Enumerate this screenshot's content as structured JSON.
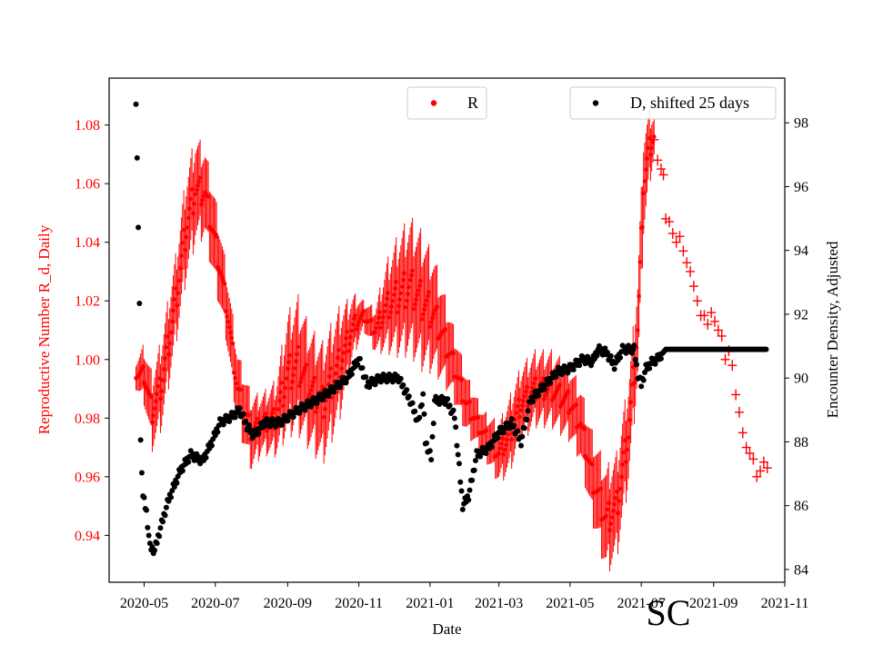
{
  "chart_data": {
    "type": "scatter",
    "x_axis": {
      "label": "Date",
      "start": "2020-04-01",
      "end": "2021-11-01",
      "tick_labels": [
        "2020-05",
        "2020-07",
        "2020-09",
        "2020-11",
        "2021-01",
        "2021-03",
        "2021-05",
        "2021-07",
        "2021-09",
        "2021-11"
      ],
      "tick_dates": [
        "2020-05-01",
        "2020-07-01",
        "2020-09-01",
        "2020-11-01",
        "2021-01-01",
        "2021-03-01",
        "2021-05-01",
        "2021-07-01",
        "2021-09-01",
        "2021-11-01"
      ]
    },
    "y_left": {
      "label": "Reproductive Number R_d, Daily",
      "ylim": [
        0.924,
        1.096
      ],
      "ticks": [
        0.94,
        0.96,
        0.98,
        1.0,
        1.02,
        1.04,
        1.06,
        1.08
      ],
      "tick_labels": [
        "0.94",
        "0.96",
        "0.98",
        "1.00",
        "1.02",
        "1.04",
        "1.06",
        "1.08"
      ],
      "color": "#ff0000"
    },
    "y_right": {
      "label": "Encounter Density, Adjusted",
      "ylim": [
        83.6,
        99.4
      ],
      "ticks": [
        84,
        86,
        88,
        90,
        92,
        94,
        96,
        98
      ],
      "tick_labels": [
        "84",
        "86",
        "88",
        "90",
        "92",
        "94",
        "96",
        "98"
      ],
      "color": "#000000"
    },
    "series": [
      {
        "name": "R",
        "axis": "left",
        "color": "#ff0000",
        "marker": "dot+error-band",
        "keyframes": [
          [
            "2020-04-24",
            0.995,
            0.004
          ],
          [
            "2020-05-01",
            0.995,
            0.008
          ],
          [
            "2020-05-08",
            0.982,
            0.01
          ],
          [
            "2020-05-16",
            0.992,
            0.012
          ],
          [
            "2020-05-28",
            1.02,
            0.012
          ],
          [
            "2020-06-06",
            1.045,
            0.014
          ],
          [
            "2020-06-14",
            1.058,
            0.014
          ],
          [
            "2020-06-22",
            1.057,
            0.012
          ],
          [
            "2020-07-01",
            1.04,
            0.012
          ],
          [
            "2020-07-10",
            1.02,
            0.01
          ],
          [
            "2020-07-20",
            0.99,
            0.01
          ],
          [
            "2020-08-01",
            0.975,
            0.01
          ],
          [
            "2020-08-10",
            0.978,
            0.008
          ],
          [
            "2020-08-22",
            0.98,
            0.01
          ],
          [
            "2020-09-01",
            0.995,
            0.016
          ],
          [
            "2020-09-10",
            0.998,
            0.018
          ],
          [
            "2020-09-20",
            0.99,
            0.016
          ],
          [
            "2020-10-01",
            0.985,
            0.016
          ],
          [
            "2020-10-15",
            0.998,
            0.015
          ],
          [
            "2020-10-28",
            1.012,
            0.008
          ],
          [
            "2020-11-05",
            1.015,
            0.004
          ],
          [
            "2020-11-15",
            1.01,
            0.006
          ],
          [
            "2020-11-25",
            1.018,
            0.012
          ],
          [
            "2020-12-05",
            1.022,
            0.016
          ],
          [
            "2020-12-15",
            1.025,
            0.018
          ],
          [
            "2020-12-25",
            1.02,
            0.018
          ],
          [
            "2021-01-05",
            1.015,
            0.015
          ],
          [
            "2021-01-20",
            1.0,
            0.01
          ],
          [
            "2021-02-01",
            0.985,
            0.008
          ],
          [
            "2021-02-15",
            0.975,
            0.006
          ],
          [
            "2021-03-01",
            0.968,
            0.008
          ],
          [
            "2021-03-10",
            0.974,
            0.01
          ],
          [
            "2021-03-20",
            0.985,
            0.01
          ],
          [
            "2021-04-01",
            0.99,
            0.01
          ],
          [
            "2021-04-15",
            0.99,
            0.01
          ],
          [
            "2021-05-01",
            0.985,
            0.01
          ],
          [
            "2021-05-10",
            0.978,
            0.01
          ],
          [
            "2021-05-20",
            0.96,
            0.012
          ],
          [
            "2021-06-01",
            0.945,
            0.014
          ],
          [
            "2021-06-10",
            0.95,
            0.014
          ],
          [
            "2021-06-20",
            0.975,
            0.014
          ],
          [
            "2021-06-28",
            1.01,
            0.014
          ],
          [
            "2021-07-03",
            1.06,
            0.014
          ],
          [
            "2021-07-08",
            1.072,
            0.01
          ],
          [
            "2021-07-12",
            1.076,
            0.006
          ]
        ],
        "plus_points": [
          [
            "2021-07-12",
            1.075
          ],
          [
            "2021-07-15",
            1.068
          ],
          [
            "2021-07-18",
            1.065
          ],
          [
            "2021-07-20",
            1.063
          ],
          [
            "2021-07-22",
            1.048
          ],
          [
            "2021-07-25",
            1.047
          ],
          [
            "2021-07-28",
            1.043
          ],
          [
            "2021-07-31",
            1.04
          ],
          [
            "2021-08-03",
            1.042
          ],
          [
            "2021-08-06",
            1.037
          ],
          [
            "2021-08-09",
            1.033
          ],
          [
            "2021-08-12",
            1.03
          ],
          [
            "2021-08-15",
            1.025
          ],
          [
            "2021-08-18",
            1.02
          ],
          [
            "2021-08-21",
            1.015
          ],
          [
            "2021-08-24",
            1.015
          ],
          [
            "2021-08-27",
            1.012
          ],
          [
            "2021-08-30",
            1.016
          ],
          [
            "2021-09-02",
            1.013
          ],
          [
            "2021-09-05",
            1.01
          ],
          [
            "2021-09-08",
            1.008
          ],
          [
            "2021-09-11",
            1.0
          ],
          [
            "2021-09-14",
            1.003
          ],
          [
            "2021-09-17",
            0.998
          ],
          [
            "2021-09-20",
            0.988
          ],
          [
            "2021-09-23",
            0.982
          ],
          [
            "2021-09-26",
            0.975
          ],
          [
            "2021-09-29",
            0.97
          ],
          [
            "2021-10-02",
            0.968
          ],
          [
            "2021-10-05",
            0.966
          ],
          [
            "2021-10-08",
            0.96
          ],
          [
            "2021-10-11",
            0.962
          ],
          [
            "2021-10-14",
            0.965
          ],
          [
            "2021-10-17",
            0.963
          ]
        ]
      },
      {
        "name": "D, shifted 25 days",
        "axis": "right",
        "color": "#000000",
        "marker": "dot",
        "keyframes": [
          [
            "2020-04-24",
            98.7
          ],
          [
            "2020-04-25",
            96.9
          ],
          [
            "2020-04-26",
            94.6
          ],
          [
            "2020-04-27",
            92.4
          ],
          [
            "2020-04-28",
            88.0
          ],
          [
            "2020-04-30",
            86.3
          ],
          [
            "2020-05-03",
            85.8
          ],
          [
            "2020-05-06",
            84.7
          ],
          [
            "2020-05-10",
            84.6
          ],
          [
            "2020-05-15",
            85.3
          ],
          [
            "2020-05-22",
            86.2
          ],
          [
            "2020-06-01",
            87.1
          ],
          [
            "2020-06-10",
            87.6
          ],
          [
            "2020-06-20",
            87.4
          ],
          [
            "2020-06-28",
            88.0
          ],
          [
            "2020-07-05",
            88.6
          ],
          [
            "2020-07-15",
            88.8
          ],
          [
            "2020-07-22",
            89.0
          ],
          [
            "2020-07-28",
            88.5
          ],
          [
            "2020-08-03",
            88.2
          ],
          [
            "2020-08-12",
            88.6
          ],
          [
            "2020-08-25",
            88.6
          ],
          [
            "2020-09-10",
            89.0
          ],
          [
            "2020-09-25",
            89.3
          ],
          [
            "2020-10-08",
            89.6
          ],
          [
            "2020-10-22",
            90.0
          ],
          [
            "2020-11-01",
            90.6
          ],
          [
            "2020-11-08",
            89.8
          ],
          [
            "2020-11-20",
            90.0
          ],
          [
            "2020-12-05",
            90.0
          ],
          [
            "2020-12-15",
            89.3
          ],
          [
            "2020-12-22",
            88.6
          ],
          [
            "2020-12-26",
            89.5
          ],
          [
            "2020-12-28",
            88.0
          ],
          [
            "2021-01-02",
            87.5
          ],
          [
            "2021-01-05",
            89.3
          ],
          [
            "2021-01-15",
            89.3
          ],
          [
            "2021-01-22",
            88.8
          ],
          [
            "2021-01-26",
            87.2
          ],
          [
            "2021-01-29",
            86.0
          ],
          [
            "2021-02-03",
            86.3
          ],
          [
            "2021-02-10",
            87.6
          ],
          [
            "2021-02-20",
            87.8
          ],
          [
            "2021-03-01",
            88.3
          ],
          [
            "2021-03-12",
            88.6
          ],
          [
            "2021-03-20",
            88.0
          ],
          [
            "2021-03-28",
            89.3
          ],
          [
            "2021-04-10",
            89.8
          ],
          [
            "2021-04-20",
            90.2
          ],
          [
            "2021-05-01",
            90.3
          ],
          [
            "2021-05-12",
            90.6
          ],
          [
            "2021-05-20",
            90.5
          ],
          [
            "2021-05-25",
            90.9
          ],
          [
            "2021-06-01",
            90.8
          ],
          [
            "2021-06-08",
            90.4
          ],
          [
            "2021-06-15",
            90.9
          ],
          [
            "2021-06-25",
            90.9
          ],
          [
            "2021-06-28",
            90.1
          ],
          [
            "2021-07-01",
            89.8
          ],
          [
            "2021-07-05",
            90.3
          ],
          [
            "2021-07-10",
            90.5
          ],
          [
            "2021-07-15",
            90.6
          ],
          [
            "2021-07-22",
            90.9
          ],
          [
            "2021-10-16",
            90.9
          ]
        ]
      }
    ],
    "legend": [
      {
        "label": "R",
        "color": "#ff0000",
        "placement": "top-center"
      },
      {
        "label": "D, shifted 25 days",
        "color": "#000000",
        "placement": "top-right"
      }
    ]
  },
  "watermark": "SC"
}
